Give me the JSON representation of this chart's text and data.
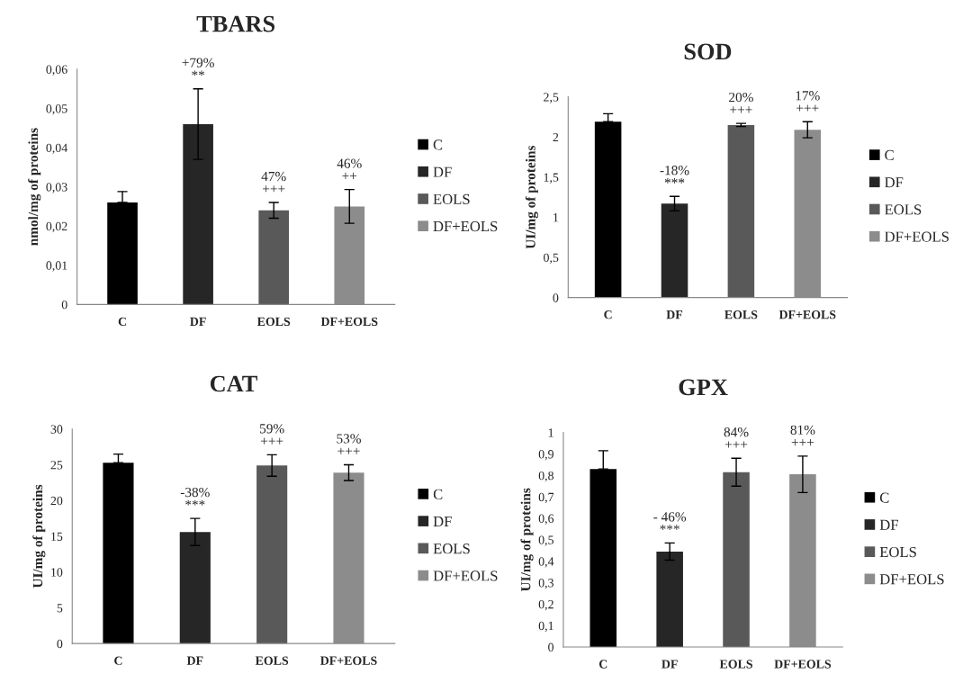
{
  "chart_data": [
    {
      "type": "bar",
      "title": "TBARS",
      "ylabel": "nmol/mg of proteins",
      "categories": [
        "C",
        "DF",
        "EOLS",
        "DF+EOLS"
      ],
      "series": [
        {
          "name": "C",
          "color": "#000000",
          "values": [
            0.026,
            null,
            null,
            null
          ],
          "errors": [
            [
              0.026,
              0.0288
            ],
            null,
            null,
            null
          ]
        },
        {
          "name": "DF",
          "color": "#262626",
          "values": [
            null,
            0.046,
            null,
            null
          ],
          "errors": [
            null,
            0.009,
            null,
            null
          ]
        },
        {
          "name": "EOLS",
          "color": "#595959",
          "values": [
            null,
            null,
            0.024,
            null
          ],
          "errors": [
            null,
            null,
            0.002,
            null
          ]
        },
        {
          "name": "DF+EOLS",
          "color": "#8c8c8c",
          "values": [
            null,
            null,
            null,
            0.025
          ],
          "errors": [
            null,
            null,
            null,
            0.0043
          ]
        }
      ],
      "ylim": [
        0,
        0.06
      ],
      "yticks": [
        0,
        {
          "value": 0.01,
          "label": "0,01"
        },
        {
          "value": 0.02,
          "label": "0,02"
        },
        {
          "value": 0.03,
          "label": "0,03"
        },
        {
          "value": 0.04,
          "label": "0,04"
        },
        {
          "value": 0.05,
          "label": "0,05"
        },
        {
          "value": 0.06,
          "label": "0,06"
        }
      ],
      "legend": "right",
      "annotations": [
        "+79%\n**",
        "47%\n+++",
        "46%\n++"
      ]
    },
    {
      "type": "bar",
      "title": "SOD",
      "ylabel": "UI/mg of proteins",
      "categories": [
        "C",
        "DF",
        "EOLS",
        "DF+EOLS"
      ],
      "series": [
        {
          "name": "C",
          "color": "#000000",
          "values": [
            2.19,
            null,
            null,
            null
          ],
          "errors": [
            [
              2.19,
              2.29
            ],
            null,
            null,
            null
          ]
        },
        {
          "name": "DF",
          "color": "#262626",
          "values": [
            null,
            1.17,
            null,
            null
          ],
          "errors": [
            null,
            0.09,
            null,
            null
          ]
        },
        {
          "name": "EOLS",
          "color": "#595959",
          "values": [
            null,
            null,
            2.15,
            null
          ],
          "errors": [
            null,
            null,
            0.02,
            null
          ]
        },
        {
          "name": "DF+EOLS",
          "color": "#8c8c8c",
          "values": [
            null,
            null,
            null,
            2.09
          ],
          "errors": [
            null,
            null,
            null,
            0.1
          ]
        }
      ],
      "ylim": [
        0,
        2.5
      ],
      "yticks": [
        0,
        {
          "value": 0.5,
          "label": "0,5"
        },
        1,
        {
          "value": 1.5,
          "label": "1,5"
        },
        2,
        {
          "value": 2.5,
          "label": "2,5"
        }
      ],
      "legend": "right",
      "annotations": [
        "-18%\n***",
        "20%\n+++",
        "17%\n+++"
      ]
    },
    {
      "type": "bar",
      "title": "CAT",
      "ylabel": "UI/mg of proteins",
      "categories": [
        "C",
        "DF",
        "EOLS",
        "DF+EOLS"
      ],
      "series": [
        {
          "name": "C",
          "color": "#000000",
          "values": [
            25.3,
            null,
            null,
            null
          ],
          "errors": [
            [
              25.3,
              26.5
            ],
            null,
            null,
            null
          ]
        },
        {
          "name": "DF",
          "color": "#262626",
          "values": [
            null,
            15.6,
            null,
            null
          ],
          "errors": [
            null,
            1.9,
            null,
            null
          ]
        },
        {
          "name": "EOLS",
          "color": "#595959",
          "values": [
            null,
            null,
            24.9,
            null
          ],
          "errors": [
            null,
            null,
            1.5,
            null
          ]
        },
        {
          "name": "DF+EOLS",
          "color": "#8c8c8c",
          "values": [
            null,
            null,
            null,
            23.9
          ],
          "errors": [
            null,
            null,
            null,
            1.1
          ]
        }
      ],
      "ylim": [
        0,
        30
      ],
      "yticks": [
        0,
        5,
        10,
        15,
        20,
        25,
        30
      ],
      "legend": "right",
      "annotations": [
        "-38%\n***",
        "59%\n+++",
        "53%\n+++"
      ]
    },
    {
      "type": "bar",
      "title": "GPX",
      "ylabel": "UI/mg of proteins",
      "categories": [
        "C",
        "DF",
        "EOLS",
        "DF+EOLS"
      ],
      "series": [
        {
          "name": "C",
          "color": "#000000",
          "values": [
            0.83,
            null,
            null,
            null
          ],
          "errors": [
            [
              0.83,
              0.915
            ],
            null,
            null,
            null
          ]
        },
        {
          "name": "DF",
          "color": "#262626",
          "values": [
            null,
            0.445,
            null,
            null
          ],
          "errors": [
            null,
            0.04,
            null,
            null
          ]
        },
        {
          "name": "EOLS",
          "color": "#595959",
          "values": [
            null,
            null,
            0.815,
            null
          ],
          "errors": [
            null,
            null,
            0.065,
            null
          ]
        },
        {
          "name": "DF+EOLS",
          "color": "#8c8c8c",
          "values": [
            null,
            null,
            null,
            0.805
          ],
          "errors": [
            null,
            null,
            null,
            0.085
          ]
        }
      ],
      "ylim": [
        0,
        1
      ],
      "yticks": [
        0,
        {
          "value": 0.1,
          "label": "0,1"
        },
        {
          "value": 0.2,
          "label": "0,2"
        },
        {
          "value": 0.3,
          "label": "0,3"
        },
        {
          "value": 0.4,
          "label": "0,4"
        },
        {
          "value": 0.5,
          "label": "0,5"
        },
        {
          "value": 0.6,
          "label": "0,6"
        },
        {
          "value": 0.7,
          "label": "0,7"
        },
        {
          "value": 0.8,
          "label": "0,8"
        },
        {
          "value": 0.9,
          "label": "0,9"
        },
        1
      ],
      "legend": "right",
      "annotations": [
        "- 46%\n***",
        "84%\n+++",
        "81%\n+++"
      ]
    }
  ]
}
